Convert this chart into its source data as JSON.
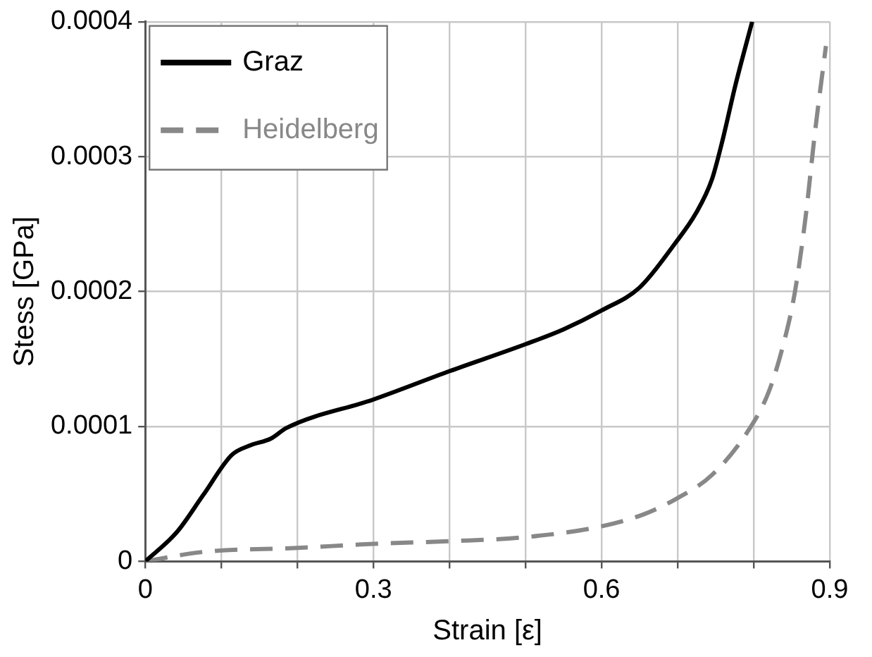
{
  "chart_data": {
    "type": "line",
    "xlabel": "Strain [ε]",
    "ylabel": "Stess [GPa]",
    "xlim": [
      0,
      0.9
    ],
    "ylim": [
      0,
      0.0004
    ],
    "xticks": [
      0,
      {
        "value": 0.1,
        "label": null
      },
      {
        "value": 0.2,
        "label": null
      },
      0.3,
      {
        "value": 0.4,
        "label": null
      },
      {
        "value": 0.5,
        "label": null
      },
      0.6,
      {
        "value": 0.7,
        "label": null
      },
      {
        "value": 0.8,
        "label": null
      },
      0.9
    ],
    "yticks": [
      0,
      0.0001,
      0.0002,
      0.0003,
      0.0004
    ],
    "grid": true,
    "legend": "top left",
    "marker": "none",
    "series": [
      {
        "name": "Graz",
        "color": "#000000",
        "line_style": "solid",
        "x": [
          0,
          0.042,
          0.076,
          0.114,
          0.138,
          0.165,
          0.186,
          0.3,
          0.4,
          0.5,
          0.55,
          0.6,
          0.65,
          0.697,
          0.724,
          0.745,
          0.759,
          0.776,
          0.798
        ],
        "values": [
          0,
          2.2e-05,
          4.9e-05,
          7.9e-05,
          8.6e-05,
          9.1e-05,
          9.9e-05,
          0.00012,
          0.000141,
          0.000161,
          0.000172,
          0.000186,
          0.000203,
          0.000236,
          0.000258,
          0.000283,
          0.000312,
          0.000353,
          0.0004
        ]
      },
      {
        "name": "Heidelberg",
        "color": "#888888",
        "line_style": "dashed",
        "x": [
          0,
          0.076,
          0.2,
          0.3,
          0.4,
          0.5,
          0.6,
          0.656,
          0.697,
          0.745,
          0.793,
          0.82,
          0.84,
          0.854,
          0.868,
          0.881,
          0.895
        ],
        "values": [
          0,
          7e-06,
          1e-05,
          1.3e-05,
          1.5e-05,
          1.8e-05,
          2.6e-05,
          3.5e-05,
          4.6e-05,
          6.4e-05,
          9.7e-05,
          0.000126,
          0.000163,
          0.000199,
          0.000254,
          0.00032,
          0.000382
        ]
      }
    ]
  }
}
